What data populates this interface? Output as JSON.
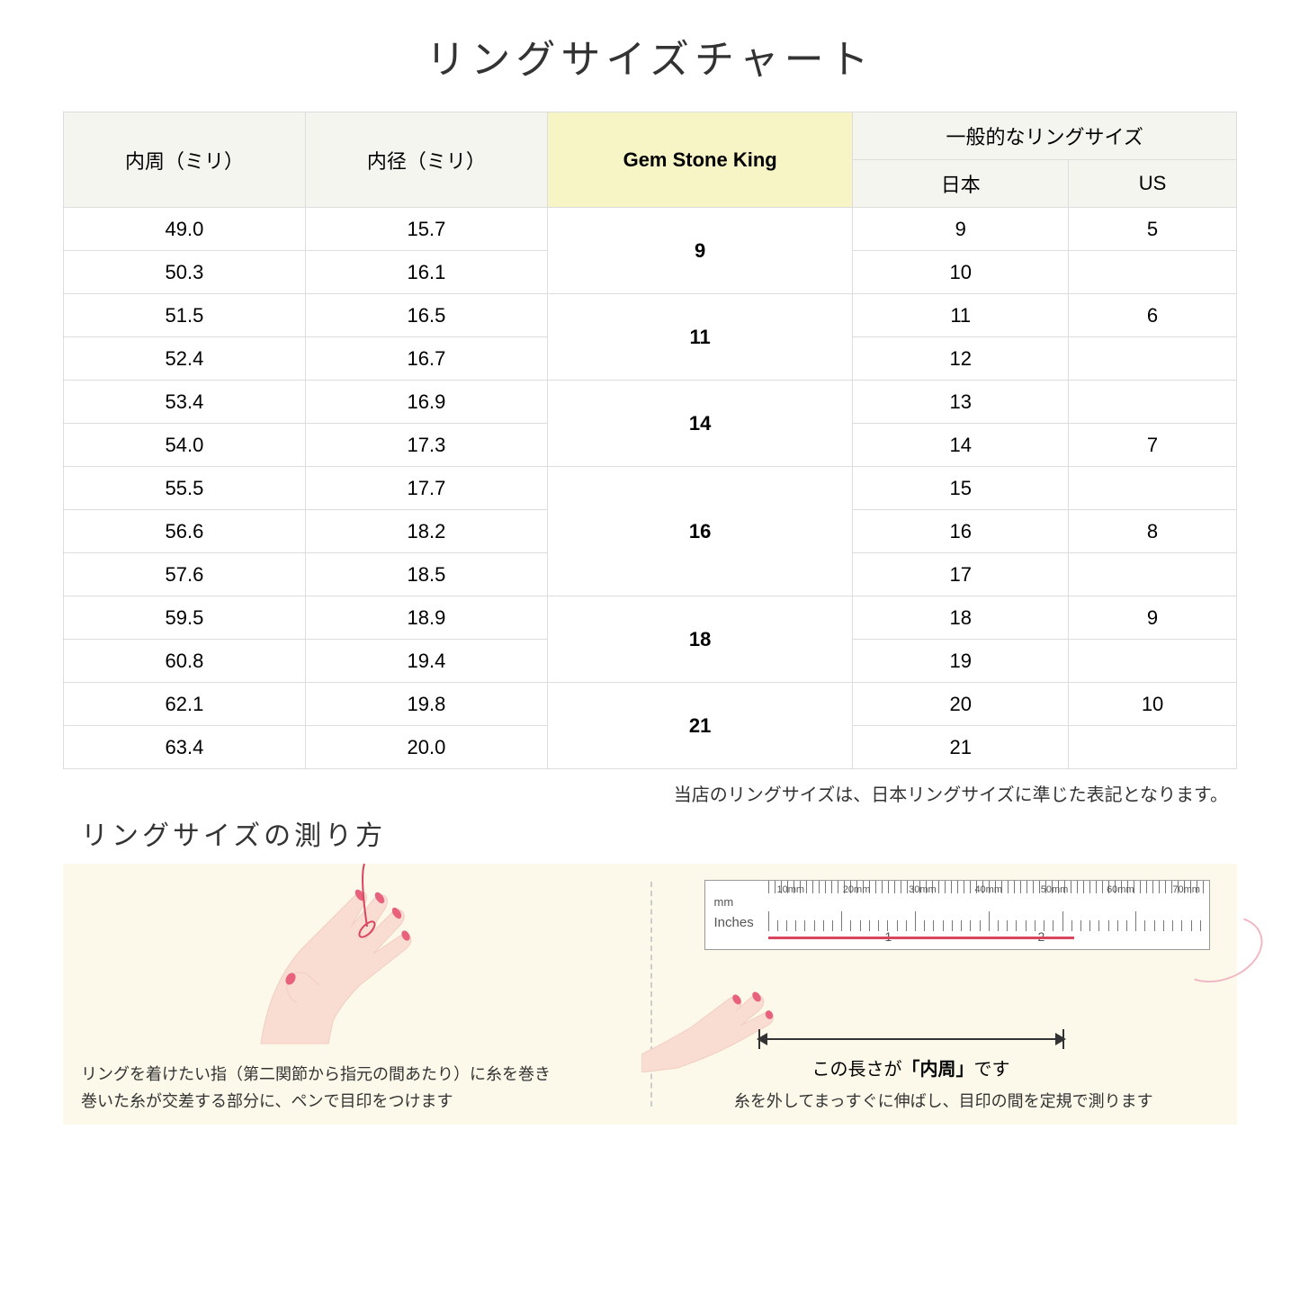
{
  "title": "リングサイズチャート",
  "table": {
    "headers": {
      "circumference": "内周（ミリ）",
      "diameter": "内径（ミリ）",
      "gsk": "Gem Stone King",
      "general": "一般的なリングサイズ",
      "japan": "日本",
      "us": "US"
    },
    "groups": [
      {
        "gsk": "9",
        "rows": [
          {
            "c": "49.0",
            "d": "15.7",
            "jp": "9",
            "us": "5"
          },
          {
            "c": "50.3",
            "d": "16.1",
            "jp": "10",
            "us": ""
          }
        ]
      },
      {
        "gsk": "11",
        "rows": [
          {
            "c": "51.5",
            "d": "16.5",
            "jp": "11",
            "us": "6"
          },
          {
            "c": "52.4",
            "d": "16.7",
            "jp": "12",
            "us": ""
          }
        ]
      },
      {
        "gsk": "14",
        "rows": [
          {
            "c": "53.4",
            "d": "16.9",
            "jp": "13",
            "us": ""
          },
          {
            "c": "54.0",
            "d": "17.3",
            "jp": "14",
            "us": "7"
          }
        ]
      },
      {
        "gsk": "16",
        "rows": [
          {
            "c": "55.5",
            "d": "17.7",
            "jp": "15",
            "us": ""
          },
          {
            "c": "56.6",
            "d": "18.2",
            "jp": "16",
            "us": "8"
          },
          {
            "c": "57.6",
            "d": "18.5",
            "jp": "17",
            "us": ""
          }
        ]
      },
      {
        "gsk": "18",
        "rows": [
          {
            "c": "59.5",
            "d": "18.9",
            "jp": "18",
            "us": "9"
          },
          {
            "c": "60.8",
            "d": "19.4",
            "jp": "19",
            "us": ""
          }
        ]
      },
      {
        "gsk": "21",
        "rows": [
          {
            "c": "62.1",
            "d": "19.8",
            "jp": "20",
            "us": "10"
          },
          {
            "c": "63.4",
            "d": "20.0",
            "jp": "21",
            "us": ""
          }
        ]
      }
    ]
  },
  "note": "当店のリングサイズは、日本リングサイズに準じた表記となります。",
  "subtitle": "リングサイズの測り方",
  "instruction_left": "リングを着けたい指（第二関節から指元の間あたり）に糸を巻き\n巻いた糸が交差する部分に、ペンで目印をつけます",
  "instruction_right": "糸を外してまっすぐに伸ばし、目印の間を定規で測ります",
  "ruler": {
    "mm_label": "mm",
    "inch_label": "Inches",
    "mm_ticks": [
      "10mm",
      "20mm",
      "30mm",
      "40mm",
      "50mm",
      "60mm",
      "70mm"
    ],
    "inch_marks": [
      "1",
      "2"
    ]
  },
  "arrow_label_pre": "この長さが",
  "arrow_label_bold": "「内周」",
  "arrow_label_post": "です",
  "colors": {
    "header_gray": "#f5f5f0",
    "header_yellow": "#f7f5c5",
    "border": "#dddddd",
    "panel_bg": "#fcf9ea",
    "skin": "#f9ddd3",
    "skin_shade": "#f3cdc2",
    "nail": "#e8627d",
    "thread": "#d9455f"
  }
}
